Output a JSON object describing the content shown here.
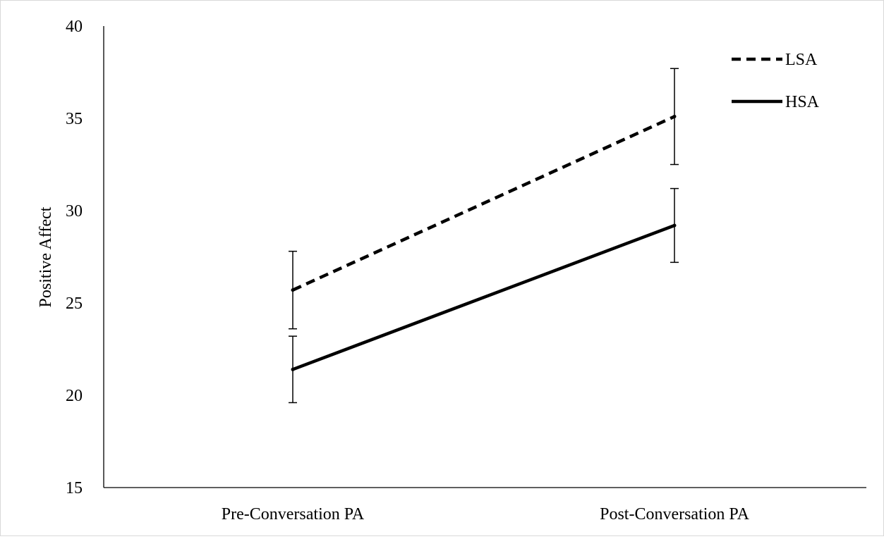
{
  "chart_data": {
    "type": "line",
    "title": "",
    "xlabel": "",
    "ylabel": "Positive Affect",
    "ylim": [
      15,
      40
    ],
    "yticks": [
      15,
      20,
      25,
      30,
      35,
      40
    ],
    "categories": [
      "Pre-Conversation PA",
      "Post-Conversation PA"
    ],
    "series": [
      {
        "name": "LSA",
        "line_style": "dashed",
        "values": [
          25.7,
          35.1
        ],
        "error_low": [
          23.6,
          32.5
        ],
        "error_high": [
          27.8,
          37.7
        ]
      },
      {
        "name": "HSA",
        "line_style": "solid",
        "values": [
          21.4,
          29.2
        ],
        "error_low": [
          19.6,
          27.2
        ],
        "error_high": [
          23.2,
          31.2
        ]
      }
    ],
    "grid": false,
    "legend_position": "top-right",
    "colors": {
      "line": "#000000",
      "axis": "#000000",
      "frame": "#d9d9d9"
    }
  }
}
